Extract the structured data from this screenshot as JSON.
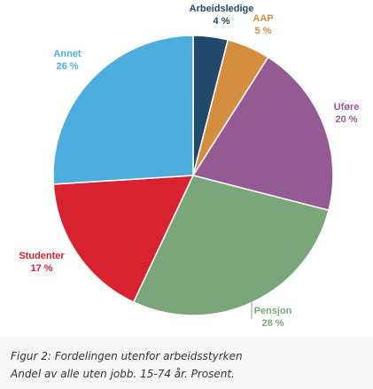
{
  "chart_data": {
    "type": "pie",
    "categories": [
      "Arbeidsledige",
      "AAP",
      "Uføre",
      "Pensjon",
      "Studenter",
      "Annet"
    ],
    "values": [
      4,
      5,
      20,
      28,
      17,
      26
    ],
    "value_labels": [
      "4 %",
      "5 %",
      "20 %",
      "28 %",
      "17 %",
      "26 %"
    ],
    "colors": [
      "#20496a",
      "#d38f3f",
      "#935a93",
      "#7aa67a",
      "#d92230",
      "#4daedd"
    ],
    "caption": [
      "Figur 2: Fordelingen utenfor arbeidsstyrken",
      "Andel av alle uten jobb. 15-74 år. Prosent."
    ]
  }
}
